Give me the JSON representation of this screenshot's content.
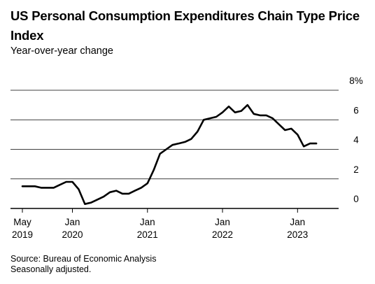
{
  "chart_data": {
    "type": "line",
    "title": "US Personal Consumption Expenditures Chain Type Price Index",
    "subtitle": "Year-over-year change",
    "xlabel": "",
    "ylabel": "",
    "ylim": [
      0,
      8
    ],
    "yticks": [
      {
        "value": 8,
        "label": "8%"
      },
      {
        "value": 6,
        "label": "6"
      },
      {
        "value": 4,
        "label": "4"
      },
      {
        "value": 2,
        "label": "2"
      },
      {
        "value": 0,
        "label": "0"
      }
    ],
    "xticks": [
      {
        "date": "2019-05",
        "line1": "May",
        "line2": "2019"
      },
      {
        "date": "2020-01",
        "line1": "Jan",
        "line2": "2020"
      },
      {
        "date": "2021-01",
        "line1": "Jan",
        "line2": "2021"
      },
      {
        "date": "2022-01",
        "line1": "Jan",
        "line2": "2022"
      },
      {
        "date": "2023-01",
        "line1": "Jan",
        "line2": "2023"
      }
    ],
    "xlim": [
      "2019-05",
      "2023-06"
    ],
    "grid": true,
    "line_color": "#000000",
    "series": [
      {
        "name": "",
        "x": [
          "2019-05",
          "2019-06",
          "2019-07",
          "2019-08",
          "2019-09",
          "2019-10",
          "2019-11",
          "2019-12",
          "2020-01",
          "2020-02",
          "2020-03",
          "2020-04",
          "2020-05",
          "2020-06",
          "2020-07",
          "2020-08",
          "2020-09",
          "2020-10",
          "2020-11",
          "2020-12",
          "2021-01",
          "2021-02",
          "2021-03",
          "2021-04",
          "2021-05",
          "2021-06",
          "2021-07",
          "2021-08",
          "2021-09",
          "2021-10",
          "2021-11",
          "2021-12",
          "2022-01",
          "2022-02",
          "2022-03",
          "2022-04",
          "2022-05",
          "2022-06",
          "2022-07",
          "2022-08",
          "2022-09",
          "2022-10",
          "2022-11",
          "2022-12",
          "2023-01",
          "2023-02",
          "2023-03",
          "2023-04"
        ],
        "values": [
          1.5,
          1.5,
          1.5,
          1.4,
          1.4,
          1.4,
          1.6,
          1.8,
          1.8,
          1.3,
          0.3,
          0.4,
          0.6,
          0.8,
          1.1,
          1.2,
          1.0,
          1.0,
          1.2,
          1.4,
          1.7,
          2.6,
          3.7,
          4.0,
          4.3,
          4.4,
          4.5,
          4.7,
          5.2,
          6.0,
          6.1,
          6.2,
          6.5,
          6.9,
          6.5,
          6.6,
          7.0,
          6.4,
          6.3,
          6.3,
          6.1,
          5.7,
          5.3,
          5.4,
          5.0,
          4.2,
          4.4,
          4.4
        ]
      }
    ]
  },
  "footer": {
    "source": "Source: Bureau of Economic Analysis",
    "note": "Seasonally adjusted."
  }
}
